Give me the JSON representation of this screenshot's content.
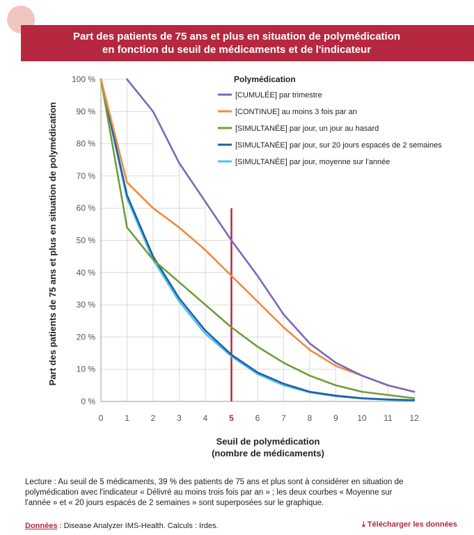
{
  "header": {
    "title_line1": "Part des patients de 75 ans et plus en situation de polymédication",
    "title_line2": "en fonction du seuil de médicaments et de l'indicateur"
  },
  "chart_data": {
    "type": "line",
    "ylabel": "Part des patients de 75 ans et plus en situation de polymédication",
    "xlabel_line1": "Seuil de polymédication",
    "xlabel_line2": "(nombre de médicaments)",
    "x": [
      0,
      1,
      2,
      3,
      4,
      5,
      6,
      7,
      8,
      9,
      10,
      11,
      12
    ],
    "x_ticks": [
      "0",
      "1",
      "2",
      "3",
      "4",
      "5",
      "6",
      "7",
      "8",
      "9",
      "10",
      "11",
      "12"
    ],
    "y_ticks": [
      "0 %",
      "10 %",
      "20 %",
      "30 %",
      "40 %",
      "50 %",
      "60 %",
      "70 %",
      "80 %",
      "90 %",
      "100 %"
    ],
    "ylim": [
      0,
      100
    ],
    "xlim": [
      0,
      12
    ],
    "highlight_x": 5,
    "legend_title": "Polymédication",
    "series": [
      {
        "tag": "[CUMULÉE]",
        "name": "par trimestre",
        "color": "#7b68b8",
        "x": [
          1,
          2,
          3,
          4,
          5,
          6,
          7,
          8,
          9,
          10,
          11,
          12
        ],
        "values": [
          100,
          90,
          74,
          62,
          50,
          39,
          27,
          18,
          12,
          8,
          5,
          3
        ]
      },
      {
        "tag": "[CONTINUE]",
        "name": "au moins 3 fois par an",
        "color": "#f08a3e",
        "x": [
          0,
          1,
          2,
          3,
          4,
          5,
          6,
          7,
          8,
          9,
          10,
          11,
          12
        ],
        "values": [
          100,
          68,
          60,
          54,
          47,
          39,
          31,
          23,
          16,
          11,
          8,
          5,
          3
        ]
      },
      {
        "tag": "[SIMULTANÉE]",
        "name": "par jour, un jour au hasard",
        "color": "#6f9c3a",
        "x": [
          0,
          1,
          2,
          3,
          4,
          5,
          6,
          7,
          8,
          9,
          10,
          11,
          12
        ],
        "values": [
          100,
          54,
          44,
          37,
          30,
          23,
          17,
          12,
          8,
          5,
          3,
          2,
          1
        ]
      },
      {
        "tag": "[SIMULTANÉE]",
        "name": "par jour, sur 20 jours espacés de 2 semaines",
        "color": "#1f5fa8",
        "x": [
          0,
          1,
          2,
          3,
          4,
          5,
          6,
          7,
          8,
          9,
          10,
          11,
          12
        ],
        "values": [
          100,
          64,
          45,
          32,
          22,
          14.5,
          9,
          5.5,
          3,
          1.8,
          1,
          0.6,
          0.4
        ]
      },
      {
        "tag": "[SIMULTANÉE]",
        "name": "par jour, moyenne sur l'année",
        "color": "#4fc3e8",
        "x": [
          0,
          1,
          2,
          3,
          4,
          5,
          6,
          7,
          8,
          9,
          10,
          11,
          12
        ],
        "values": [
          100,
          63,
          44,
          31,
          21,
          14,
          8.5,
          5,
          2.8,
          1.6,
          0.9,
          0.5,
          0.3
        ]
      }
    ]
  },
  "footer": {
    "reading_line1": "Lecture : Au seuil de 5 médicaments, 39 % des patients de 75 ans et plus sont à considérer en situation de",
    "reading_line2": "polymédication avec l'indicateur « Délivré au moins trois fois par an » ; les deux courbes « Moyenne sur",
    "reading_line3": "l'année » et « 20 jours espacés de 2 semaines » sont superposées sur le graphique.",
    "source_label": "Données",
    "source_text": " : Disease Analyzer IMS-Health. Calculs : Irdes.",
    "download_label": "Télécharger les données"
  },
  "colors": {
    "banner": "#b5283f",
    "highlight_line": "#b5283f"
  }
}
